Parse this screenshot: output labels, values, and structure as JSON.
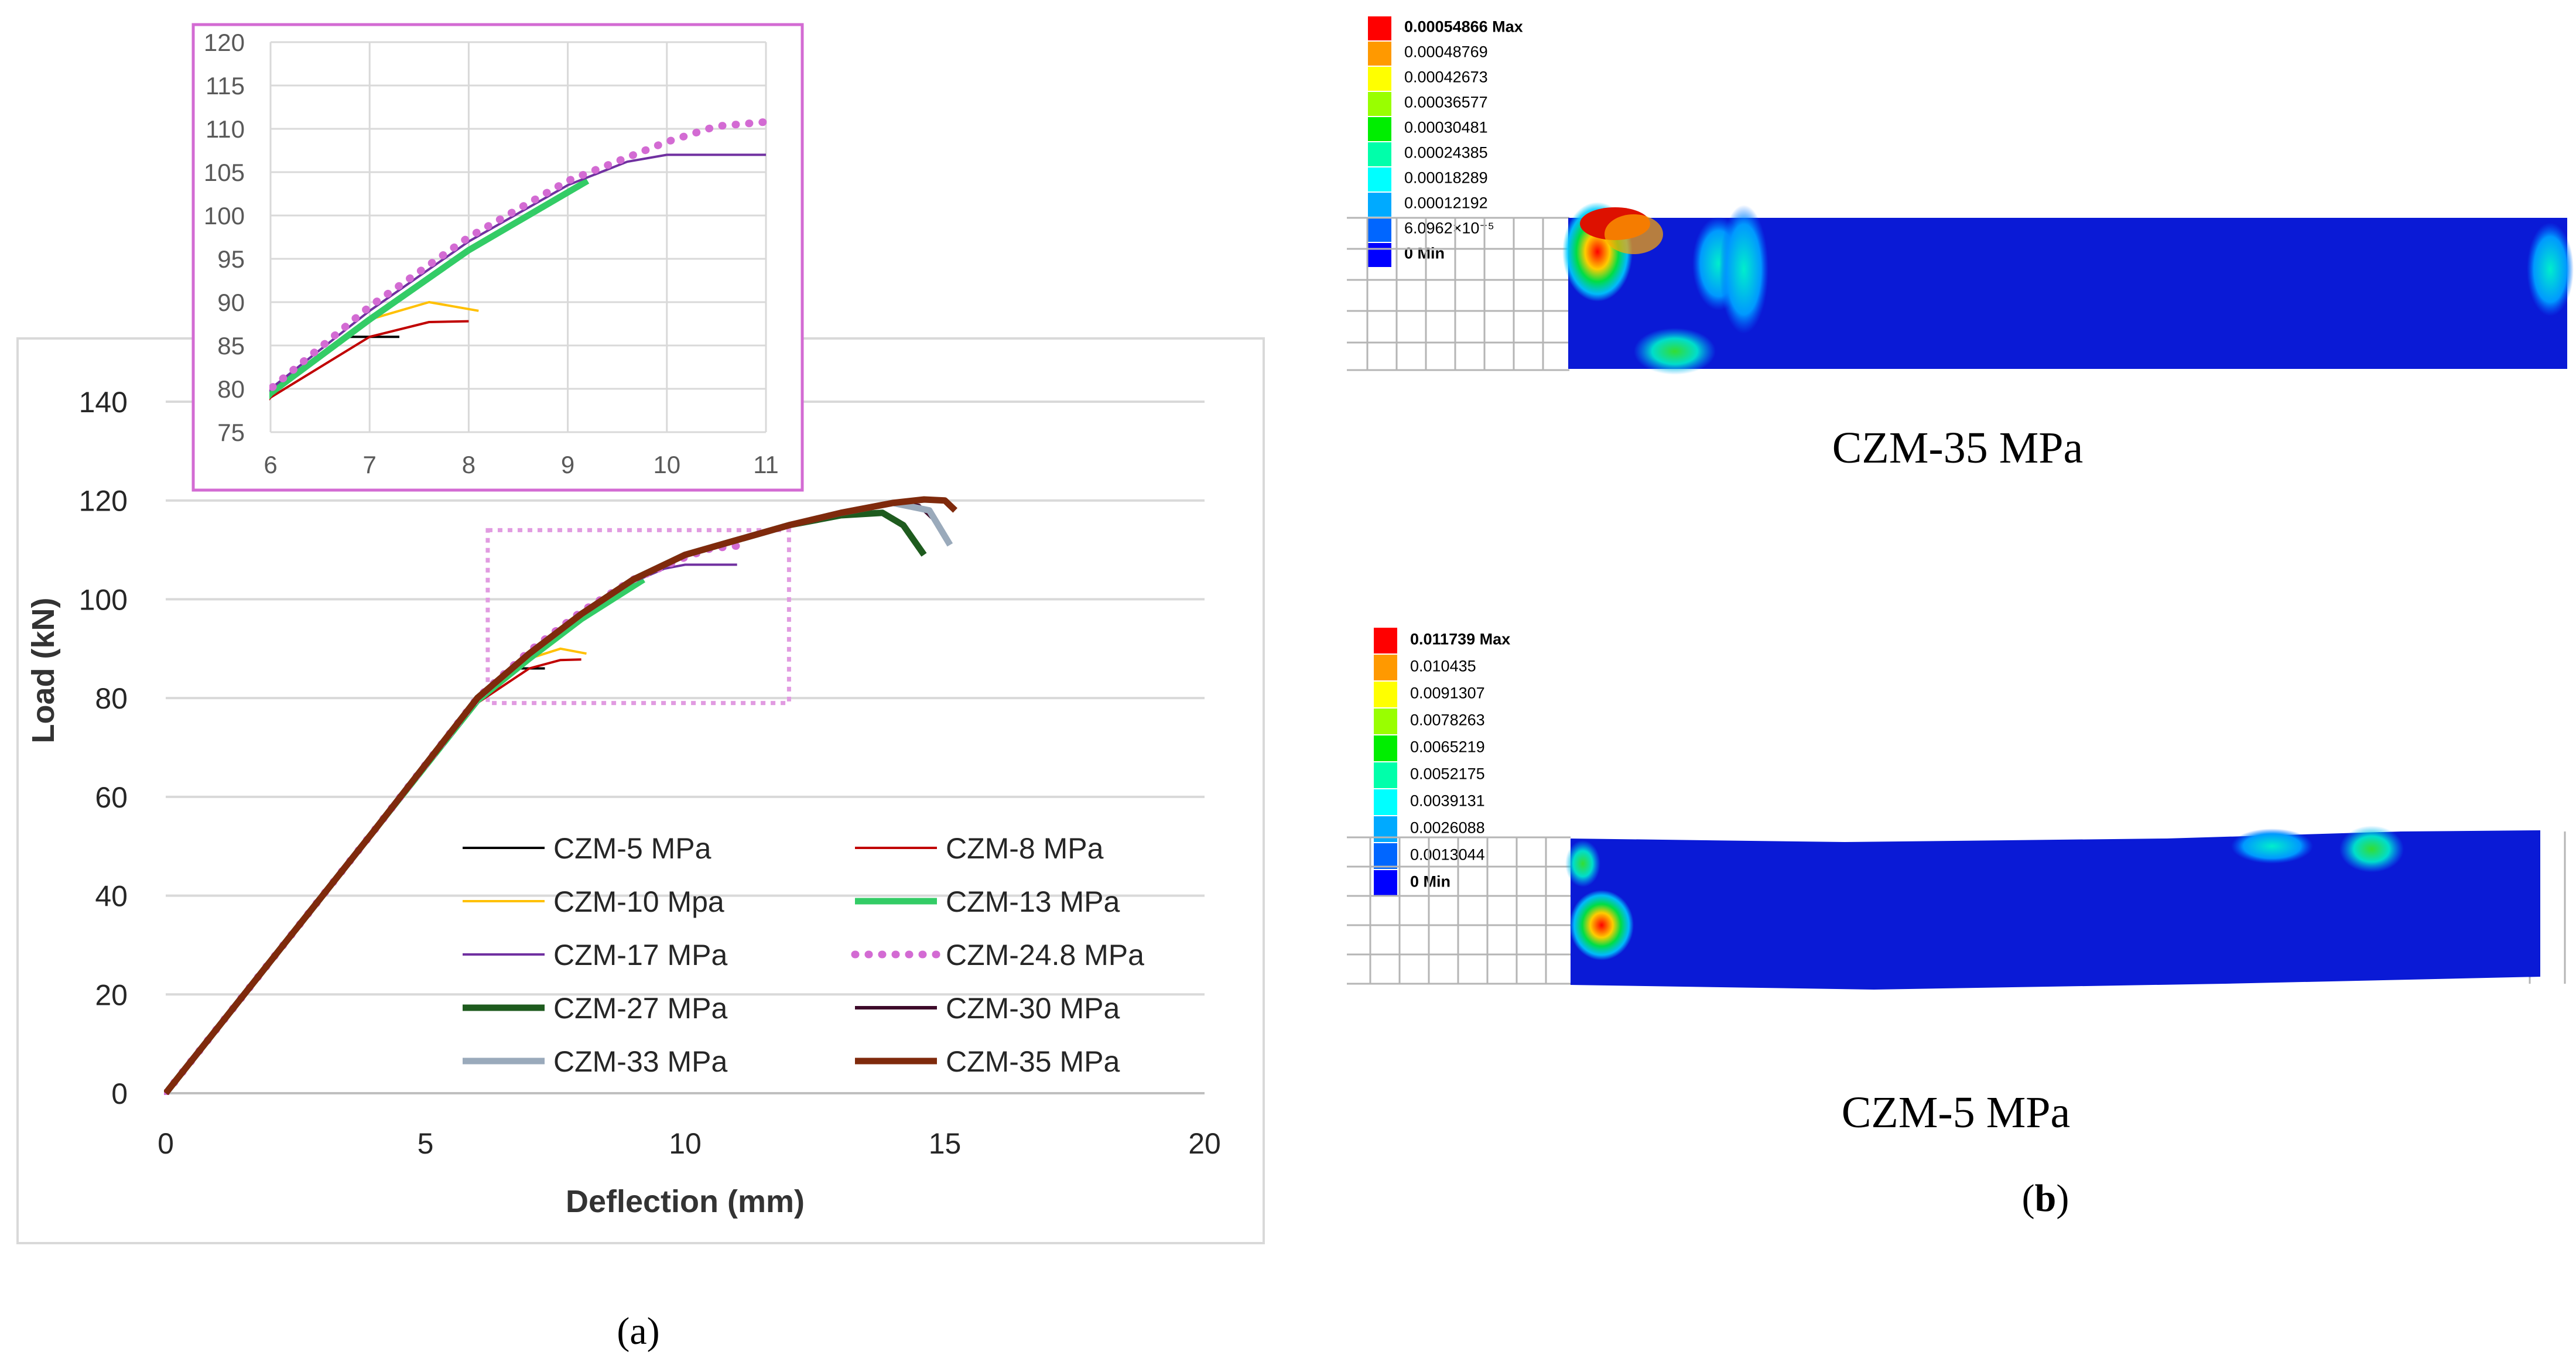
{
  "chart_data": [
    {
      "type": "line",
      "panel": "main",
      "xlabel": "Deflection (mm)",
      "ylabel": "Load (kN)",
      "xlim": [
        0,
        20
      ],
      "ylim": [
        0,
        140
      ],
      "xticks": [
        0,
        5,
        10,
        15,
        20
      ],
      "yticks": [
        0,
        20,
        40,
        60,
        80,
        100,
        120,
        140
      ],
      "grid": "horizontal",
      "legend_position": "bottom-right",
      "zoom_box": {
        "x": [
          6.2,
          12
        ],
        "y": [
          79,
          114
        ]
      },
      "series": [
        {
          "name": "CZM-5 MPa",
          "color": "#000000",
          "dash": "solid",
          "width": "thin",
          "x": [
            0,
            4,
            6,
            6.8,
            7.3
          ],
          "y": [
            0,
            53,
            80,
            86,
            86
          ]
        },
        {
          "name": "CZM-8 MPa",
          "color": "#c00000",
          "dash": "solid",
          "width": "thin",
          "x": [
            0,
            4,
            6,
            7,
            7.6,
            8
          ],
          "y": [
            0,
            53,
            79,
            86,
            87.7,
            87.8
          ]
        },
        {
          "name": "CZM-10 Mpa",
          "color": "#ffc000",
          "dash": "solid",
          "width": "thin",
          "x": [
            0,
            4,
            6,
            7,
            7.6,
            8.1
          ],
          "y": [
            0,
            53,
            79.5,
            88,
            90,
            89
          ]
        },
        {
          "name": "CZM-13 MPa",
          "color": "#33cc66",
          "dash": "solid",
          "width": "thick",
          "x": [
            0,
            4,
            6,
            7,
            8,
            9.2
          ],
          "y": [
            0,
            53,
            79.5,
            88,
            96,
            104
          ]
        },
        {
          "name": "CZM-17 MPa",
          "color": "#7030a0",
          "dash": "solid",
          "width": "thin",
          "x": [
            0,
            4,
            6,
            7,
            8,
            9,
            9.6,
            10,
            11
          ],
          "y": [
            0,
            53,
            80,
            89,
            97,
            103.5,
            106.2,
            107,
            107
          ]
        },
        {
          "name": "CZM-24.8 MPa",
          "color": "#d36bd3",
          "dash": "dotted",
          "width": "thick",
          "x": [
            0,
            4,
            6,
            7,
            8,
            9,
            10,
            10.5,
            11
          ],
          "y": [
            0,
            53,
            80,
            89.5,
            97.5,
            104,
            108.5,
            110.3,
            110.8
          ]
        },
        {
          "name": "CZM-27 MPa",
          "color": "#1e5b1e",
          "dash": "solid",
          "width": "thick",
          "x": [
            0,
            4,
            6,
            7,
            8,
            9,
            10,
            11,
            12,
            13,
            13.8,
            14.2,
            14.6
          ],
          "y": [
            0,
            53,
            80,
            89,
            97,
            104,
            109,
            112,
            115,
            117,
            117.5,
            115,
            109
          ]
        },
        {
          "name": "CZM-30 MPa",
          "color": "#3d0a2a",
          "dash": "solid",
          "width": "normal",
          "x": [
            0,
            4,
            6,
            7,
            8,
            9,
            10,
            11,
            12,
            13,
            14,
            14.5,
            14.8
          ],
          "y": [
            0,
            53,
            80,
            89,
            97,
            104,
            109,
            112,
            115,
            117.5,
            119.5,
            119,
            116
          ]
        },
        {
          "name": "CZM-33 MPa",
          "color": "#9aaabb",
          "dash": "solid",
          "width": "thick",
          "x": [
            0,
            4,
            6,
            7,
            8,
            9,
            10,
            11,
            12,
            13,
            14,
            14.7,
            15.1
          ],
          "y": [
            0,
            53,
            80,
            89,
            97,
            104,
            109,
            112,
            115,
            117.5,
            119.5,
            118,
            111
          ]
        },
        {
          "name": "CZM-35 MPa",
          "color": "#7f2a0c",
          "dash": "solid",
          "width": "thick",
          "x": [
            0,
            4,
            6,
            7,
            8,
            9,
            10,
            11,
            12,
            13,
            14,
            14.6,
            15,
            15.2
          ],
          "y": [
            0,
            53,
            80,
            89,
            97,
            104,
            109,
            112,
            115,
            117.5,
            119.5,
            120.2,
            120,
            118
          ]
        }
      ],
      "caption": "(a)"
    },
    {
      "type": "line",
      "panel": "inset",
      "xlim": [
        6,
        11
      ],
      "ylim": [
        75,
        120
      ],
      "xticks": [
        6,
        7,
        8,
        9,
        10,
        11
      ],
      "yticks": [
        75,
        80,
        85,
        90,
        95,
        100,
        105,
        110,
        115,
        120
      ],
      "grid": "both",
      "series_ref": "same series as main panel, zoomed to 6-11 mm"
    }
  ],
  "contours": [
    {
      "id": "top",
      "title": "CZM-35 MPa",
      "legend_levels": [
        "0.00054866 Max",
        "0.00048769",
        "0.00042673",
        "0.00036577",
        "0.00030481",
        "0.00024385",
        "0.00018289",
        "0.00012192",
        "6.0962×10⁻⁵",
        "0 Min"
      ],
      "legend_colors": [
        "#ff0000",
        "#ff9900",
        "#ffff00",
        "#99ff00",
        "#00ee00",
        "#00ffaa",
        "#00ffff",
        "#00aaff",
        "#0066ff",
        "#0000ff"
      ]
    },
    {
      "id": "bottom",
      "title": "CZM-5 MPa",
      "legend_levels": [
        "0.011739 Max",
        "0.010435",
        "0.0091307",
        "0.0078263",
        "0.0065219",
        "0.0052175",
        "0.0039131",
        "0.0026088",
        "0.0013044",
        "0 Min"
      ],
      "legend_colors": [
        "#ff0000",
        "#ff9900",
        "#ffff00",
        "#99ff00",
        "#00ee00",
        "#00ffaa",
        "#00ffff",
        "#00aaff",
        "#0066ff",
        "#0000ff"
      ]
    }
  ],
  "captions": {
    "a": "(a)",
    "b_open": "(",
    "b_letter": "b",
    "b_close": ")"
  }
}
